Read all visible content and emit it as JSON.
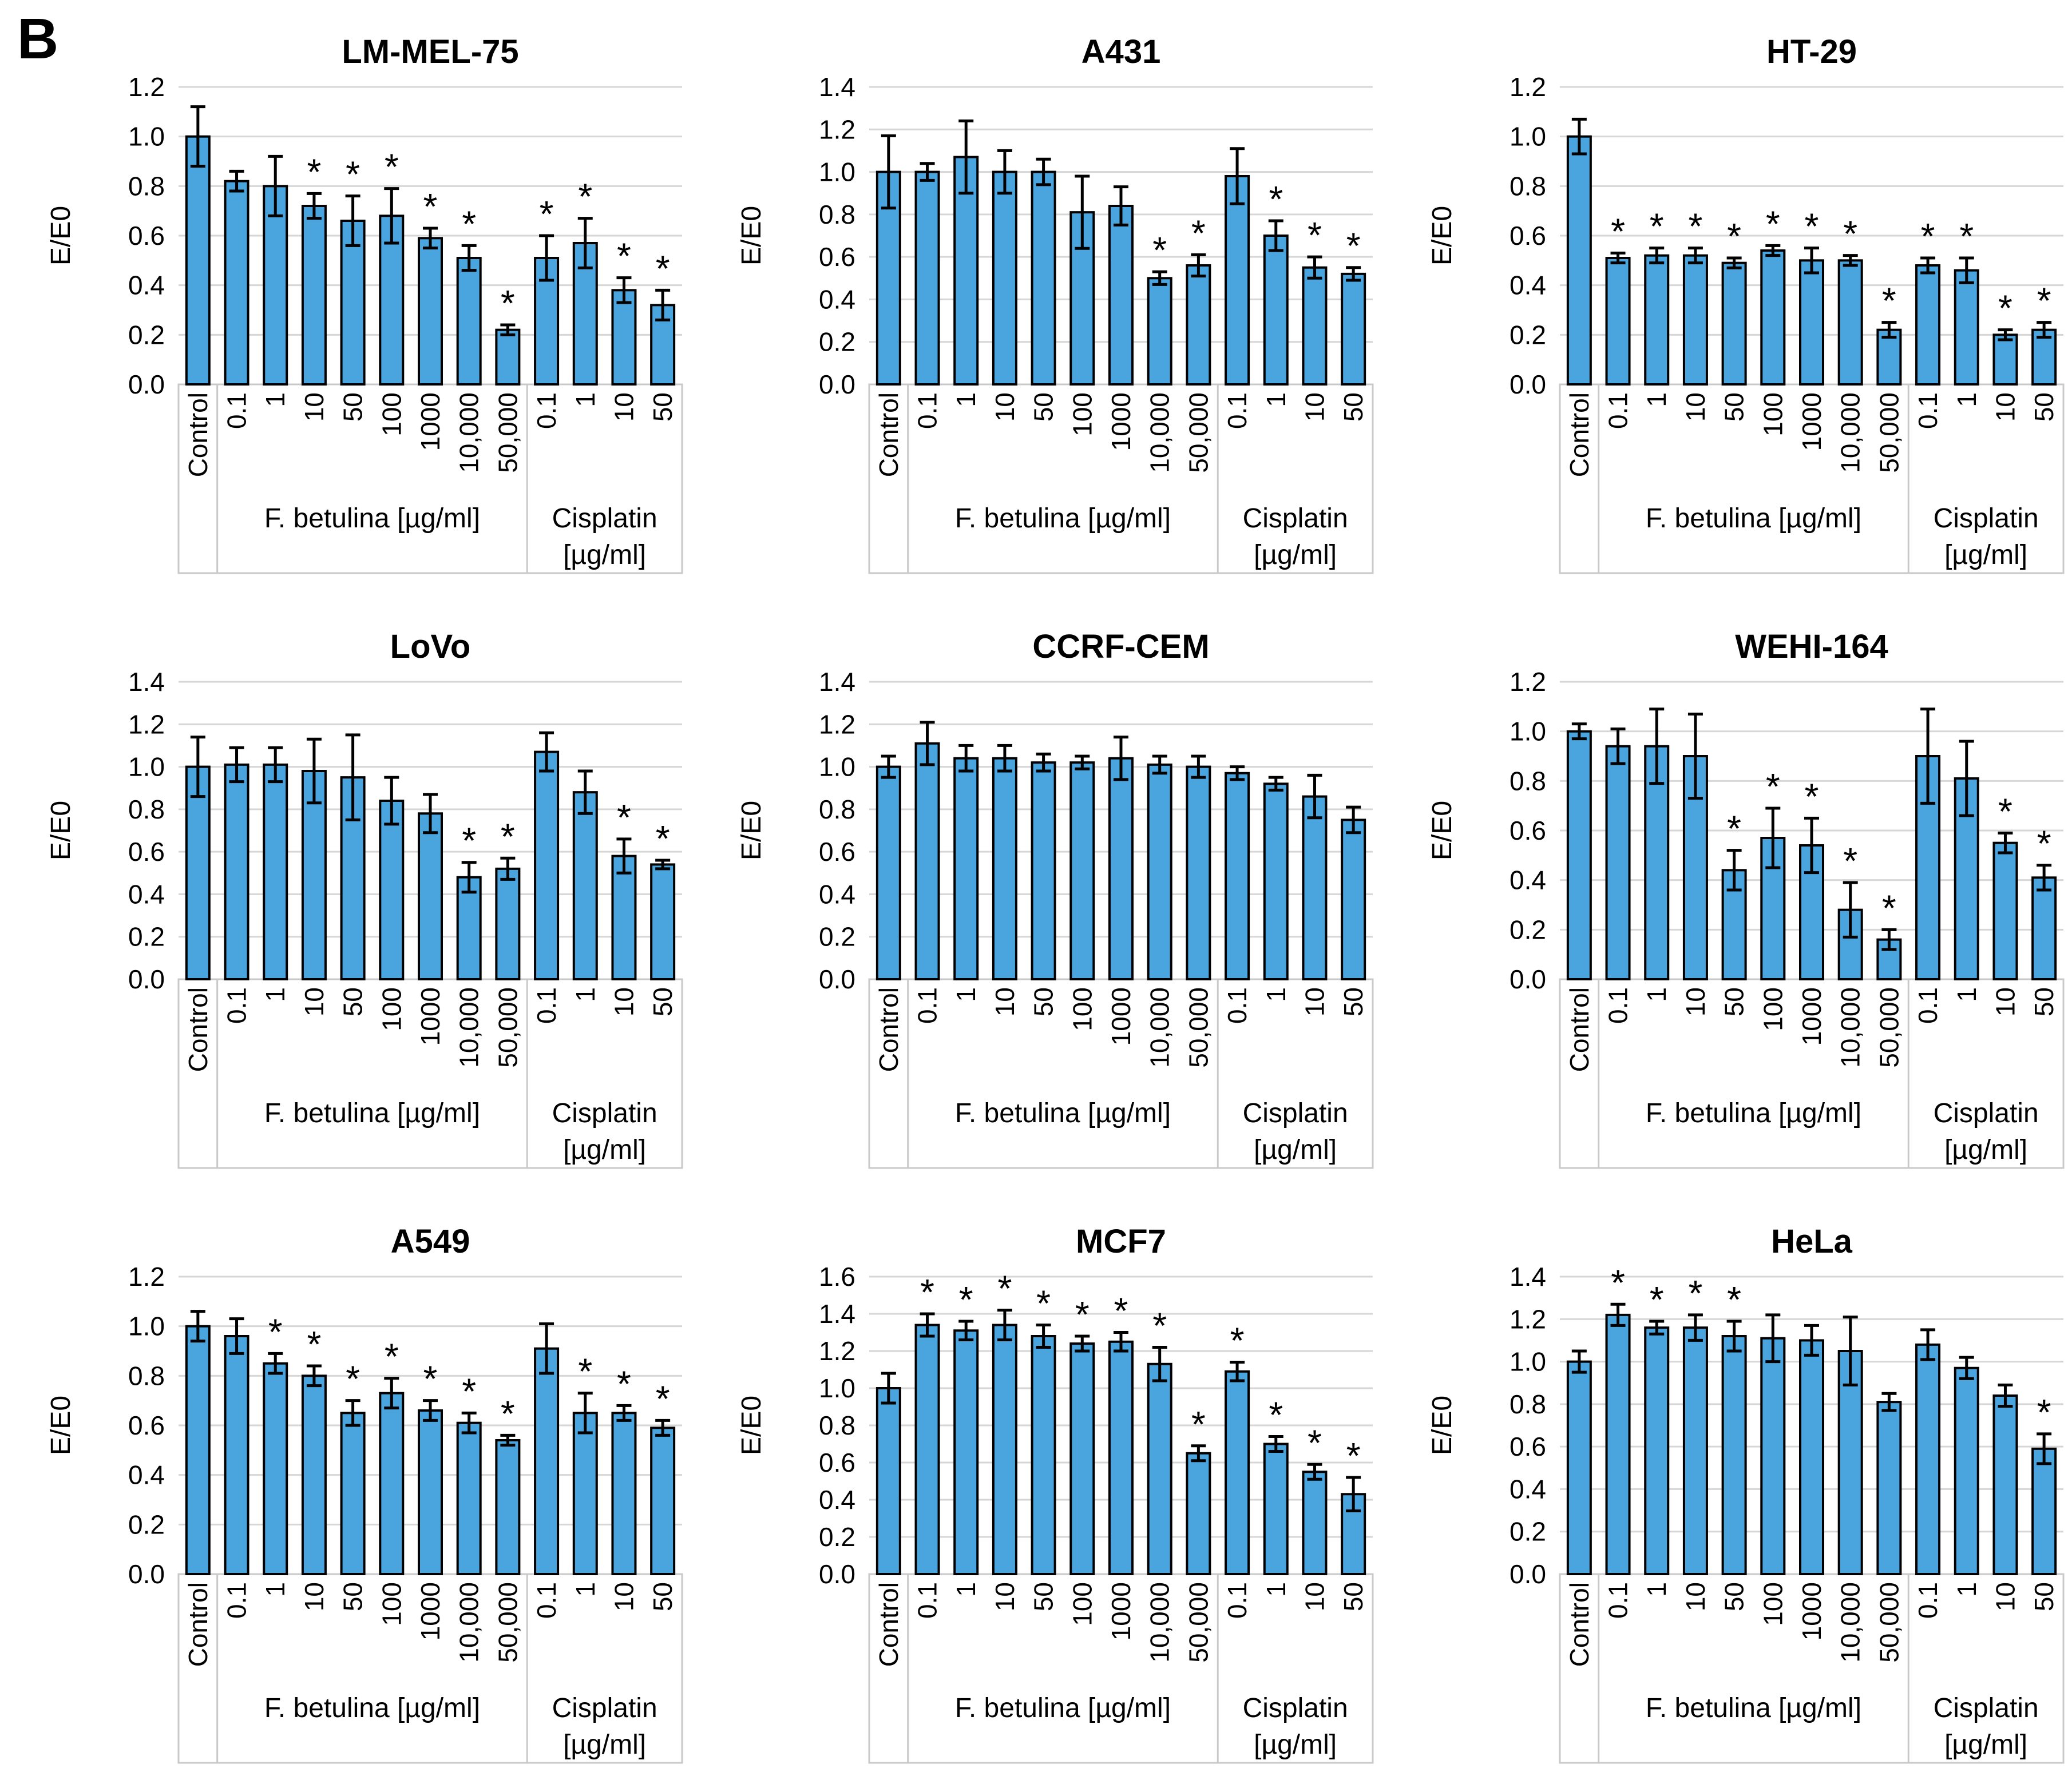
{
  "panel_label": "B",
  "colors": {
    "bar_fill": "#4AA4DE",
    "bar_stroke": "#000000",
    "error_bar": "#000000",
    "gridline": "#D6D6D6",
    "box_line": "#C9C9C9",
    "text": "#000000",
    "background": "#FFFFFF"
  },
  "axis": {
    "ylabel": "E/E0",
    "categories": [
      "Control",
      "0.1",
      "1",
      "10",
      "50",
      "100",
      "1000",
      "10,000",
      "50,000",
      "0.1",
      "1",
      "10",
      "50"
    ],
    "groups": [
      {
        "label_lines": [],
        "start": 0,
        "end": 0
      },
      {
        "label_lines": [
          "F. betulina [µg/ml]"
        ],
        "start": 1,
        "end": 8
      },
      {
        "label_lines": [
          "Cisplatin",
          "[µg/ml]"
        ],
        "start": 9,
        "end": 12
      }
    ],
    "significance_marker": "*"
  },
  "chart_data": [
    {
      "type": "bar",
      "title": "LM-MEL-75",
      "ylabel": "E/E0",
      "ylim": [
        0,
        1.2
      ],
      "ytick_step": 0.2,
      "categories": [
        "Control",
        "0.1",
        "1",
        "10",
        "50",
        "100",
        "1000",
        "10,000",
        "50,000",
        "0.1",
        "1",
        "10",
        "50"
      ],
      "values": [
        1.0,
        0.82,
        0.8,
        0.72,
        0.66,
        0.68,
        0.59,
        0.51,
        0.22,
        0.51,
        0.57,
        0.38,
        0.32
      ],
      "errors": [
        0.12,
        0.04,
        0.12,
        0.05,
        0.1,
        0.11,
        0.04,
        0.05,
        0.02,
        0.09,
        0.1,
        0.05,
        0.06
      ],
      "significant": [
        false,
        false,
        false,
        true,
        true,
        true,
        true,
        true,
        true,
        true,
        true,
        true,
        true
      ]
    },
    {
      "type": "bar",
      "title": "A431",
      "ylabel": "E/E0",
      "ylim": [
        0,
        1.4
      ],
      "ytick_step": 0.2,
      "categories": [
        "Control",
        "0.1",
        "1",
        "10",
        "50",
        "100",
        "1000",
        "10,000",
        "50,000",
        "0.1",
        "1",
        "10",
        "50"
      ],
      "values": [
        1.0,
        1.0,
        1.07,
        1.0,
        1.0,
        0.81,
        0.84,
        0.5,
        0.56,
        0.98,
        0.7,
        0.55,
        0.52
      ],
      "errors": [
        0.17,
        0.04,
        0.17,
        0.1,
        0.06,
        0.17,
        0.09,
        0.03,
        0.05,
        0.13,
        0.07,
        0.05,
        0.03
      ],
      "significant": [
        false,
        false,
        false,
        false,
        false,
        false,
        false,
        true,
        true,
        false,
        true,
        true,
        true
      ]
    },
    {
      "type": "bar",
      "title": "HT-29",
      "ylabel": "E/E0",
      "ylim": [
        0,
        1.2
      ],
      "ytick_step": 0.2,
      "categories": [
        "Control",
        "0.1",
        "1",
        "10",
        "50",
        "100",
        "1000",
        "10,000",
        "50,000",
        "0.1",
        "1",
        "10",
        "50"
      ],
      "values": [
        1.0,
        0.51,
        0.52,
        0.52,
        0.49,
        0.54,
        0.5,
        0.5,
        0.22,
        0.48,
        0.46,
        0.2,
        0.22
      ],
      "errors": [
        0.07,
        0.02,
        0.03,
        0.03,
        0.02,
        0.02,
        0.05,
        0.02,
        0.03,
        0.03,
        0.05,
        0.02,
        0.03
      ],
      "significant": [
        false,
        true,
        true,
        true,
        true,
        true,
        true,
        true,
        true,
        true,
        true,
        true,
        true
      ]
    },
    {
      "type": "bar",
      "title": "LoVo",
      "ylabel": "E/E0",
      "ylim": [
        0,
        1.4
      ],
      "ytick_step": 0.2,
      "categories": [
        "Control",
        "0.1",
        "1",
        "10",
        "50",
        "100",
        "1000",
        "10,000",
        "50,000",
        "0.1",
        "1",
        "10",
        "50"
      ],
      "values": [
        1.0,
        1.01,
        1.01,
        0.98,
        0.95,
        0.84,
        0.78,
        0.48,
        0.52,
        1.07,
        0.88,
        0.58,
        0.54
      ],
      "errors": [
        0.14,
        0.08,
        0.08,
        0.15,
        0.2,
        0.11,
        0.09,
        0.07,
        0.05,
        0.09,
        0.1,
        0.08,
        0.02
      ],
      "significant": [
        false,
        false,
        false,
        false,
        false,
        false,
        false,
        true,
        true,
        false,
        false,
        true,
        true
      ]
    },
    {
      "type": "bar",
      "title": "CCRF-CEM",
      "ylabel": "E/E0",
      "ylim": [
        0,
        1.4
      ],
      "ytick_step": 0.2,
      "categories": [
        "Control",
        "0.1",
        "1",
        "10",
        "50",
        "100",
        "1000",
        "10,000",
        "50,000",
        "0.1",
        "1",
        "10",
        "50"
      ],
      "values": [
        1.0,
        1.11,
        1.04,
        1.04,
        1.02,
        1.02,
        1.04,
        1.01,
        1.0,
        0.97,
        0.92,
        0.86,
        0.75
      ],
      "errors": [
        0.05,
        0.1,
        0.06,
        0.06,
        0.04,
        0.03,
        0.1,
        0.04,
        0.05,
        0.03,
        0.03,
        0.1,
        0.06
      ],
      "significant": [
        false,
        false,
        false,
        false,
        false,
        false,
        false,
        false,
        false,
        false,
        false,
        false,
        false
      ]
    },
    {
      "type": "bar",
      "title": "WEHI-164",
      "ylabel": "E/E0",
      "ylim": [
        0,
        1.2
      ],
      "ytick_step": 0.2,
      "categories": [
        "Control",
        "0.1",
        "1",
        "10",
        "50",
        "100",
        "1000",
        "10,000",
        "50,000",
        "0.1",
        "1",
        "10",
        "50"
      ],
      "values": [
        1.0,
        0.94,
        0.94,
        0.9,
        0.44,
        0.57,
        0.54,
        0.28,
        0.16,
        0.9,
        0.81,
        0.55,
        0.41
      ],
      "errors": [
        0.03,
        0.07,
        0.15,
        0.17,
        0.08,
        0.12,
        0.11,
        0.11,
        0.04,
        0.19,
        0.15,
        0.04,
        0.05
      ],
      "significant": [
        false,
        false,
        false,
        false,
        true,
        true,
        true,
        true,
        true,
        false,
        false,
        true,
        true
      ]
    },
    {
      "type": "bar",
      "title": "A549",
      "ylabel": "E/E0",
      "ylim": [
        0,
        1.2
      ],
      "ytick_step": 0.2,
      "categories": [
        "Control",
        "0.1",
        "1",
        "10",
        "50",
        "100",
        "1000",
        "10,000",
        "50,000",
        "0.1",
        "1",
        "10",
        "50"
      ],
      "values": [
        1.0,
        0.96,
        0.85,
        0.8,
        0.65,
        0.73,
        0.66,
        0.61,
        0.54,
        0.91,
        0.65,
        0.65,
        0.59
      ],
      "errors": [
        0.06,
        0.07,
        0.04,
        0.04,
        0.05,
        0.06,
        0.04,
        0.04,
        0.02,
        0.1,
        0.08,
        0.03,
        0.03
      ],
      "significant": [
        false,
        false,
        true,
        true,
        true,
        true,
        true,
        true,
        true,
        false,
        true,
        true,
        true
      ]
    },
    {
      "type": "bar",
      "title": "MCF7",
      "ylabel": "E/E0",
      "ylim": [
        0,
        1.6
      ],
      "ytick_step": 0.2,
      "categories": [
        "Control",
        "0.1",
        "1",
        "10",
        "50",
        "100",
        "1000",
        "10,000",
        "50,000",
        "0.1",
        "1",
        "10",
        "50"
      ],
      "values": [
        1.0,
        1.34,
        1.31,
        1.34,
        1.28,
        1.24,
        1.25,
        1.13,
        0.65,
        1.09,
        0.7,
        0.55,
        0.43
      ],
      "errors": [
        0.08,
        0.06,
        0.05,
        0.08,
        0.06,
        0.04,
        0.05,
        0.09,
        0.04,
        0.05,
        0.04,
        0.04,
        0.09
      ],
      "significant": [
        false,
        true,
        true,
        true,
        true,
        true,
        true,
        true,
        true,
        true,
        true,
        true,
        true
      ]
    },
    {
      "type": "bar",
      "title": "HeLa",
      "ylabel": "E/E0",
      "ylim": [
        0,
        1.4
      ],
      "ytick_step": 0.2,
      "categories": [
        "Control",
        "0.1",
        "1",
        "10",
        "50",
        "100",
        "1000",
        "10,000",
        "50,000",
        "0.1",
        "1",
        "10",
        "50"
      ],
      "values": [
        1.0,
        1.22,
        1.16,
        1.16,
        1.12,
        1.11,
        1.1,
        1.05,
        0.81,
        1.08,
        0.97,
        0.84,
        0.59
      ],
      "errors": [
        0.05,
        0.05,
        0.03,
        0.06,
        0.07,
        0.11,
        0.07,
        0.16,
        0.04,
        0.07,
        0.05,
        0.05,
        0.07
      ],
      "significant": [
        false,
        true,
        true,
        true,
        true,
        false,
        false,
        false,
        false,
        false,
        false,
        false,
        true
      ]
    }
  ]
}
